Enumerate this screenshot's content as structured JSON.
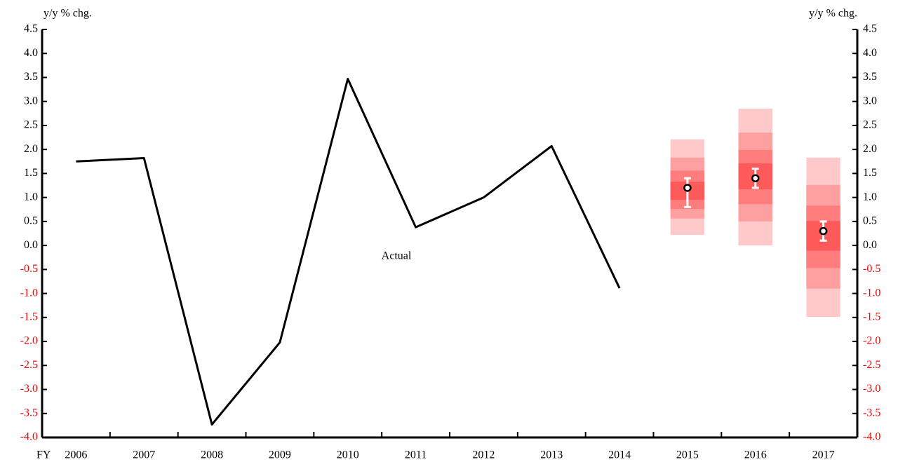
{
  "chart_data": {
    "type": "fan",
    "ylabel": "y/y % chg.",
    "y2label": "y/y % chg.",
    "xlabel": "FY",
    "categories": [
      "2006",
      "2007",
      "2008",
      "2009",
      "2010",
      "2011",
      "2012",
      "2013",
      "2014",
      "2015",
      "2016",
      "2017"
    ],
    "series": [
      {
        "name": "Actual",
        "color": "#000000",
        "values": [
          1.75,
          1.82,
          -3.73,
          -2.02,
          3.47,
          0.38,
          1.0,
          2.07,
          -0.89,
          null,
          null,
          null
        ]
      }
    ],
    "fan": {
      "colors": [
        "#ffc9c9",
        "#ffa0a0",
        "#ff7d7d",
        "#ff5a5a"
      ],
      "bands": [
        {
          "low": [
            null,
            null,
            null,
            null,
            null,
            null,
            null,
            null,
            null,
            0.22,
            0.0,
            -1.49
          ],
          "high": [
            null,
            null,
            null,
            null,
            null,
            null,
            null,
            null,
            null,
            2.21,
            2.85,
            1.83
          ]
        },
        {
          "low": [
            null,
            null,
            null,
            null,
            null,
            null,
            null,
            null,
            null,
            0.56,
            0.5,
            -0.9
          ],
          "high": [
            null,
            null,
            null,
            null,
            null,
            null,
            null,
            null,
            null,
            1.83,
            2.35,
            1.26
          ]
        },
        {
          "low": [
            null,
            null,
            null,
            null,
            null,
            null,
            null,
            null,
            null,
            0.76,
            0.86,
            -0.47
          ],
          "high": [
            null,
            null,
            null,
            null,
            null,
            null,
            null,
            null,
            null,
            1.56,
            1.99,
            0.83
          ]
        },
        {
          "low": [
            null,
            null,
            null,
            null,
            null,
            null,
            null,
            null,
            null,
            0.95,
            1.17,
            -0.11
          ],
          "high": [
            null,
            null,
            null,
            null,
            null,
            null,
            null,
            null,
            null,
            1.33,
            1.71,
            0.51
          ]
        }
      ],
      "median": [
        null,
        null,
        null,
        null,
        null,
        null,
        null,
        null,
        null,
        1.2,
        1.4,
        0.3
      ],
      "range_low": [
        null,
        null,
        null,
        null,
        null,
        null,
        null,
        null,
        null,
        0.8,
        1.2,
        0.1
      ],
      "range_high": [
        null,
        null,
        null,
        null,
        null,
        null,
        null,
        null,
        null,
        1.4,
        1.6,
        0.5
      ]
    },
    "ylim": [
      -4.0,
      4.5
    ],
    "yticks": [
      4.5,
      {
        "value": 4,
        "label": "4.0"
      },
      3.5,
      {
        "value": 3,
        "label": "3.0"
      },
      2.5,
      {
        "value": 2,
        "label": "2.0"
      },
      1.5,
      {
        "value": 1,
        "label": "1.0"
      },
      0.5,
      {
        "value": 0,
        "label": "0.0"
      },
      -0.5,
      {
        "value": -1,
        "label": "-1.0"
      },
      -1.5,
      {
        "value": -2,
        "label": "-2.0"
      },
      -2.5,
      {
        "value": -3,
        "label": "-3.0"
      },
      -3.5,
      {
        "value": -4,
        "label": "-4.0"
      }
    ],
    "negative_tick_color": "#ff0000",
    "grid": false
  }
}
